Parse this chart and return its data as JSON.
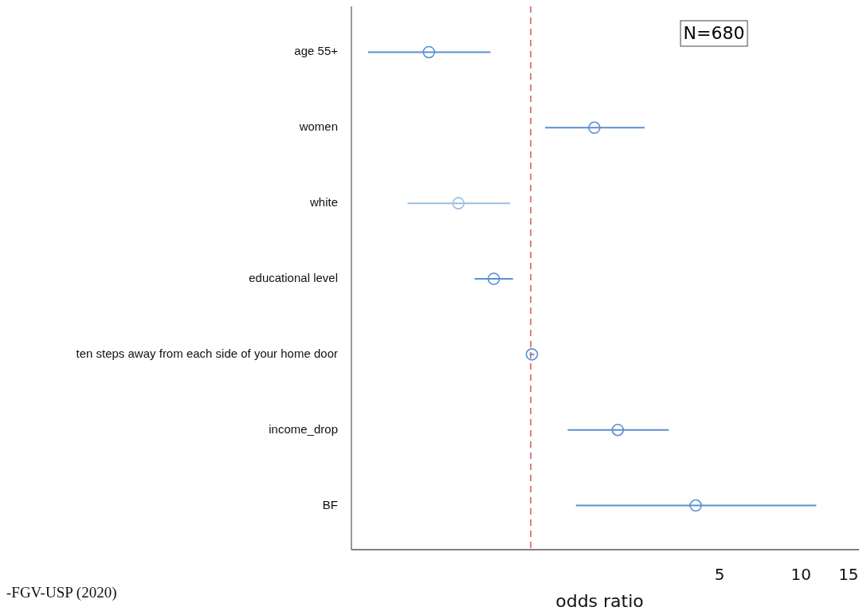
{
  "chart_data": {
    "type": "scatter",
    "orientation": "horizontal",
    "log": "x",
    "xlabel": "odds ratio",
    "categories": [
      "age 55+",
      "women",
      "white",
      "educational level",
      "ten steps away from each side of your home door",
      "income_drop",
      "BF"
    ],
    "values": [
      0.42,
      1.72,
      0.54,
      0.73,
      1.01,
      2.1,
      4.08
    ],
    "errors": [
      [
        0.25,
        0.71
      ],
      [
        1.13,
        2.64
      ],
      [
        0.35,
        0.84
      ],
      [
        0.62,
        0.86
      ],
      [
        0.99,
        1.03
      ],
      [
        1.37,
        3.24
      ],
      [
        1.47,
        11.4
      ]
    ],
    "colors": [
      "#5b8fcf",
      "#5b8fcf",
      "#9dbfe3",
      "#5b8fcf",
      "#5b8fcf",
      "#5b8fcf",
      "#5b8fcf"
    ],
    "marker": "circle",
    "xlim": [
      0.217,
      16.4
    ],
    "xticks": [
      5,
      10,
      15
    ],
    "ref_lines": [
      {
        "axis": "x",
        "value": 1,
        "color": "#d9534f",
        "line_style": "dashed"
      }
    ],
    "annotations": [
      "N=680",
      "-FGV-USP (2020)"
    ],
    "grid": false
  }
}
